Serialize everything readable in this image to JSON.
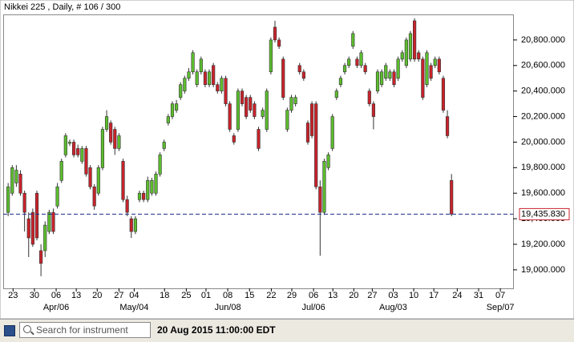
{
  "chart_data": {
    "type": "candlestick",
    "title": "Nikkei 225 , Daily, # 106 / 300",
    "up_color": "#5cbd2e",
    "down_color": "#c8232b",
    "open": [
      19450,
      19600,
      19680,
      19750,
      19600,
      19400,
      19450,
      19600,
      19150,
      19150,
      19300,
      19450,
      19500,
      19700,
      19900,
      19990,
      20000,
      19950,
      19850,
      19950,
      19800,
      19650,
      19600,
      19800,
      20100,
      20150,
      20100,
      19950,
      19850,
      19550,
      19400,
      19300,
      19550,
      19600,
      19550,
      19600,
      19600,
      19750,
      19950,
      20150,
      20200,
      20250,
      20350,
      20400,
      20500,
      20550,
      20450,
      20550,
      20550,
      20450,
      20600,
      20450,
      20400,
      20500,
      20300,
      20050,
      20100,
      20400,
      20350,
      20350,
      20300,
      20100,
      20200,
      20100,
      20550,
      20900,
      20800,
      20650,
      20100,
      20250,
      20300,
      20600,
      20550,
      20150,
      20300,
      20300,
      19650,
      19450,
      19800,
      19950,
      20350,
      20450,
      20550,
      20600,
      20750,
      20650,
      20600,
      20600,
      20400,
      20300,
      20400,
      20450,
      20500,
      20500,
      20550,
      20500,
      20650,
      20600,
      20650,
      20950,
      20700,
      20650,
      20450,
      20600,
      20600,
      20650,
      20500,
      20200,
      19700
    ],
    "high": [
      19680,
      19820,
      19820,
      19780,
      19620,
      19450,
      19480,
      19620,
      19200,
      19380,
      19470,
      19480,
      19680,
      19870,
      20070,
      20020,
      20020,
      19980,
      19970,
      19970,
      19820,
      19670,
      19820,
      20120,
      20250,
      20170,
      20120,
      20070,
      19870,
      19580,
      19420,
      19420,
      19620,
      19620,
      19730,
      19720,
      19770,
      19920,
      20020,
      20220,
      20320,
      20330,
      20470,
      20520,
      20580,
      20720,
      20570,
      20670,
      20570,
      20570,
      20620,
      20470,
      20520,
      20520,
      20320,
      20070,
      20420,
      20420,
      20370,
      20370,
      20320,
      20120,
      20270,
      20420,
      20820,
      20950,
      20820,
      20670,
      20270,
      20370,
      20370,
      20620,
      20570,
      20170,
      20320,
      20320,
      19700,
      19870,
      19920,
      20220,
      20420,
      20520,
      20620,
      20670,
      20870,
      20670,
      20720,
      20620,
      20420,
      20320,
      20570,
      20570,
      20620,
      20570,
      20570,
      20670,
      20720,
      20820,
      20870,
      20970,
      20720,
      20670,
      20720,
      20620,
      20670,
      20670,
      20520,
      20250,
      19750
    ],
    "low": [
      19420,
      19580,
      19650,
      19580,
      19300,
      19100,
      19180,
      19230,
      18950,
      19100,
      19280,
      19280,
      19480,
      19680,
      19880,
      19970,
      19880,
      19880,
      19830,
      19730,
      19630,
      19470,
      19580,
      19780,
      20080,
      19980,
      19900,
      19930,
      19530,
      19420,
      19250,
      19280,
      19530,
      19530,
      19530,
      19580,
      19580,
      19730,
      19930,
      20130,
      20180,
      20230,
      20330,
      20380,
      20480,
      20530,
      20430,
      20530,
      20430,
      20430,
      20430,
      20380,
      20380,
      20280,
      20080,
      19980,
      20080,
      20280,
      20180,
      20230,
      20180,
      19930,
      20180,
      20080,
      20530,
      20780,
      20730,
      20330,
      20080,
      20230,
      20280,
      20530,
      20480,
      19980,
      20030,
      19630,
      19110,
      19430,
      19780,
      19930,
      20330,
      20430,
      20530,
      20580,
      20730,
      20580,
      20580,
      20530,
      20280,
      20100,
      20380,
      20430,
      20480,
      20480,
      20430,
      20480,
      20630,
      20580,
      20630,
      20630,
      20630,
      20330,
      20430,
      20480,
      20580,
      20530,
      20230,
      20030,
      19420
    ],
    "close": [
      19650,
      19800,
      19780,
      19600,
      19450,
      19250,
      19200,
      19250,
      19050,
      19350,
      19450,
      19300,
      19650,
      19850,
      20050,
      20000,
      19900,
      19900,
      19950,
      19750,
      19650,
      19500,
      19800,
      20100,
      20200,
      20000,
      19950,
      20050,
      19550,
      19450,
      19300,
      19400,
      19600,
      19550,
      19700,
      19700,
      19750,
      19900,
      20000,
      20200,
      20300,
      20300,
      20450,
      20500,
      20550,
      20700,
      20550,
      20650,
      20450,
      20550,
      20450,
      20400,
      20500,
      20300,
      20100,
      20000,
      20400,
      20300,
      20200,
      20250,
      20200,
      19950,
      20250,
      20400,
      20800,
      20800,
      20750,
      20350,
      20250,
      20350,
      20350,
      20550,
      20500,
      20000,
      20050,
      19650,
      19450,
      19850,
      19900,
      20200,
      20400,
      20500,
      20600,
      20650,
      20850,
      20600,
      20700,
      20550,
      20300,
      20200,
      20550,
      20550,
      20600,
      20550,
      20450,
      20650,
      20700,
      20800,
      20850,
      20650,
      20650,
      20350,
      20700,
      20500,
      20650,
      20550,
      20250,
      20050,
      19435.83
    ],
    "xlim": [
      -1.2,
      123.0
    ],
    "xticks": [
      {
        "value": 1.2,
        "label": "23"
      },
      {
        "value": 6.4,
        "label": "30"
      },
      {
        "value": 11.7,
        "label": "06"
      },
      {
        "value": 16.6,
        "label": "13"
      },
      {
        "value": 21.7,
        "label": "20"
      },
      {
        "value": 27.0,
        "label": "27"
      },
      {
        "value": 30.7,
        "label": "04"
      },
      {
        "value": 38.1,
        "label": "18"
      },
      {
        "value": 43.4,
        "label": "25"
      },
      {
        "value": 48.2,
        "label": "01"
      },
      {
        "value": 53.5,
        "label": "08"
      },
      {
        "value": 58.8,
        "label": "15"
      },
      {
        "value": 64.1,
        "label": "22"
      },
      {
        "value": 69.1,
        "label": "29"
      },
      {
        "value": 74.4,
        "label": "06"
      },
      {
        "value": 79.1,
        "label": "13"
      },
      {
        "value": 84.2,
        "label": "20"
      },
      {
        "value": 88.7,
        "label": "27"
      },
      {
        "value": 93.8,
        "label": "03"
      },
      {
        "value": 98.8,
        "label": "10"
      },
      {
        "value": 103.7,
        "label": "17"
      },
      {
        "value": 109.4,
        "label": "24"
      },
      {
        "value": 114.6,
        "label": "31"
      },
      {
        "value": 119.9,
        "label": "07"
      }
    ],
    "month_labels": [
      {
        "value": 11.7,
        "label": "Apr/06"
      },
      {
        "value": 30.7,
        "label": "May/04"
      },
      {
        "value": 53.5,
        "label": "Jun/08"
      },
      {
        "value": 74.4,
        "label": "Jul/06"
      },
      {
        "value": 93.8,
        "label": "Aug/03"
      },
      {
        "value": 119.9,
        "label": "Sep/07"
      }
    ],
    "ylim": [
      18855,
      21000
    ],
    "yticks": [
      {
        "value": 19000,
        "label": "19,000.000"
      },
      {
        "value": 19200,
        "label": "19,200.000"
      },
      {
        "value": 19400,
        "label": "19,400.000"
      },
      {
        "value": 19600,
        "label": "19,600.000"
      },
      {
        "value": 19800,
        "label": "19,800.000"
      },
      {
        "value": 20000,
        "label": "20,000.000"
      },
      {
        "value": 20200,
        "label": "20,200.000"
      },
      {
        "value": 20400,
        "label": "20,400.000"
      },
      {
        "value": 20600,
        "label": "20,600.000"
      },
      {
        "value": 20800,
        "label": "20,800.000"
      }
    ],
    "price_line": {
      "value": 19435.83,
      "label": "19,435.830",
      "color": "#1a2a8a"
    }
  },
  "toolbar": {
    "search_placeholder": "Search for instrument",
    "timestamp": "20 Aug 2015 11:00:00 EDT"
  }
}
